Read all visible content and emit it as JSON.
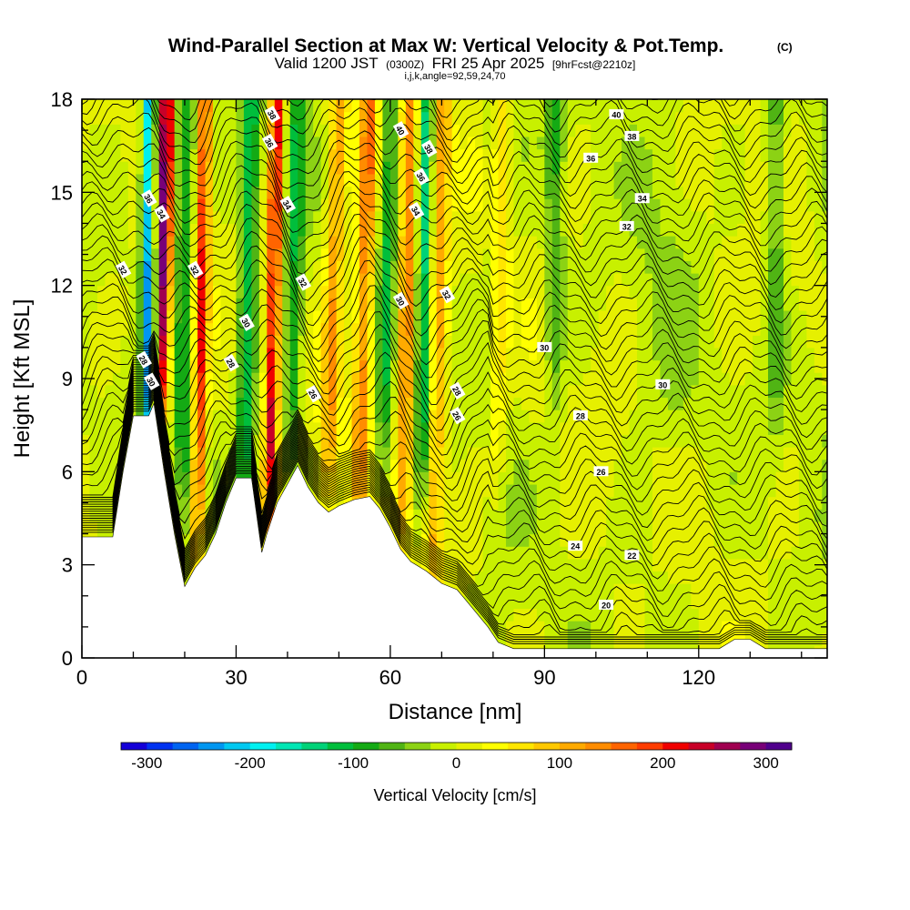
{
  "chart_data": {
    "type": "heatmap",
    "title": {
      "main": "Wind-Parallel Section at Max W: Vertical Velocity & Pot.Temp.",
      "mark": "(C)",
      "valid_prefix": "Valid 1200 JST",
      "valid_utc": "(0300Z)",
      "valid_date": "FRI 25 Apr 2025",
      "forecast": "[9hrFcst@2210z]",
      "indices": "i,j,k,angle=92,59,24,70"
    },
    "xlabel": "Distance [nm]",
    "ylabel": "Height [Kft MSL]",
    "xlim": [
      0,
      145
    ],
    "ylim": [
      0,
      18
    ],
    "x_ticks": [
      "0",
      "30",
      "60",
      "90",
      "120"
    ],
    "x_tick_values": [
      0,
      30,
      60,
      90,
      120
    ],
    "y_ticks": [
      "0",
      "3",
      "6",
      "9",
      "12",
      "15",
      "18"
    ],
    "y_tick_values": [
      0,
      3,
      6,
      9,
      12,
      15,
      18
    ],
    "colorbar": {
      "label": "Vertical Velocity [cm/s]",
      "min": -325,
      "max": 325,
      "step": 25,
      "tick_labels": [
        "-300",
        "-200",
        "-100",
        "0",
        "100",
        "200",
        "300"
      ],
      "tick_values": [
        -300,
        -200,
        -100,
        0,
        100,
        200,
        300
      ],
      "colors": [
        "#1400d8",
        "#0032f0",
        "#0064f0",
        "#0096f0",
        "#00c8f0",
        "#00f0f0",
        "#00e6b4",
        "#00d278",
        "#00be3c",
        "#14aa14",
        "#50b414",
        "#8cd214",
        "#c8f000",
        "#e6f000",
        "#ffff00",
        "#ffe600",
        "#ffc800",
        "#ffaa00",
        "#ff8c00",
        "#ff6400",
        "#ff3c00",
        "#f00000",
        "#c80028",
        "#a00050",
        "#780078",
        "#50008c"
      ]
    },
    "terrain_profile": [
      [
        0,
        3.9
      ],
      [
        6,
        3.9
      ],
      [
        8,
        6
      ],
      [
        10,
        7.8
      ],
      [
        13,
        7.8
      ],
      [
        14,
        8.2
      ],
      [
        16,
        6
      ],
      [
        18,
        4
      ],
      [
        20,
        2.3
      ],
      [
        22,
        2.9
      ],
      [
        24,
        3.3
      ],
      [
        26,
        4
      ],
      [
        28,
        5
      ],
      [
        30,
        5.8
      ],
      [
        33,
        5.8
      ],
      [
        35,
        3.4
      ],
      [
        36,
        4
      ],
      [
        38,
        5
      ],
      [
        40,
        5.6
      ],
      [
        42,
        6.2
      ],
      [
        44,
        5.5
      ],
      [
        46,
        5
      ],
      [
        48,
        4.7
      ],
      [
        50,
        4.9
      ],
      [
        53,
        5.1
      ],
      [
        56,
        5.2
      ],
      [
        58,
        4.8
      ],
      [
        60,
        4.2
      ],
      [
        62,
        3.5
      ],
      [
        64,
        3.1
      ],
      [
        67,
        2.8
      ],
      [
        70,
        2.4
      ],
      [
        73,
        2.2
      ],
      [
        76,
        1.6
      ],
      [
        79,
        1
      ],
      [
        81,
        0.5
      ],
      [
        84,
        0.3
      ],
      [
        88,
        0.3
      ],
      [
        94,
        0.3
      ],
      [
        100,
        0.3
      ],
      [
        106,
        0.3
      ],
      [
        112,
        0.3
      ],
      [
        118,
        0.3
      ],
      [
        124,
        0.3
      ],
      [
        127,
        0.6
      ],
      [
        130,
        0.6
      ],
      [
        133,
        0.3
      ],
      [
        138,
        0.3
      ],
      [
        141,
        0.3
      ],
      [
        145,
        0.3
      ]
    ],
    "updraft_plumes": [
      {
        "x": 15,
        "x_top": 16.5,
        "z_base": 8,
        "peak_w": 300
      },
      {
        "x": 22,
        "x_top": 24,
        "z_base": 3,
        "peak_w": 200
      },
      {
        "x": 36,
        "x_top": 38,
        "z_base": 4,
        "peak_w": 225
      },
      {
        "x": 47,
        "x_top": 50,
        "z_base": 5,
        "peak_w": 125
      },
      {
        "x": 53,
        "x_top": 56,
        "z_base": 5,
        "peak_w": 150
      },
      {
        "x": 62,
        "x_top": 64,
        "z_base": 4,
        "peak_w": 150
      },
      {
        "x": 68,
        "x_top": 70,
        "z_base": 2,
        "peak_w": 125
      },
      {
        "x": 80,
        "x_top": 82,
        "z_base": 6,
        "peak_w": 75
      }
    ],
    "downdraft_plumes": [
      {
        "x": 12.5,
        "x_top": 13,
        "z_base": 6,
        "peak_w": -225
      },
      {
        "x": 19.5,
        "x_top": 20,
        "z_base": 5,
        "peak_w": -100
      },
      {
        "x": 31,
        "x_top": 33,
        "z_base": 4,
        "peak_w": -125
      },
      {
        "x": 40,
        "x_top": 42,
        "z_base": 6,
        "peak_w": -100
      },
      {
        "x": 58,
        "x_top": 60,
        "z_base": 6,
        "peak_w": -100
      },
      {
        "x": 66,
        "x_top": 67,
        "z_base": 6,
        "peak_w": -150
      },
      {
        "x": 92,
        "x_top": 92,
        "z_base": 8,
        "peak_w": -75
      },
      {
        "x": 135,
        "x_top": 135,
        "z_base": 8,
        "peak_w": -75
      }
    ],
    "theta_contour_levels": [
      20,
      22,
      24,
      26,
      28,
      30,
      32,
      34,
      36,
      38,
      40
    ],
    "theta_contour_labels": [
      {
        "text": "20",
        "x": 102,
        "z": 1.7
      },
      {
        "text": "22",
        "x": 107,
        "z": 3.3
      },
      {
        "text": "24",
        "x": 96,
        "z": 3.6
      },
      {
        "text": "26",
        "x": 101,
        "z": 6
      },
      {
        "text": "26",
        "x": 73,
        "z": 7.8
      },
      {
        "text": "26",
        "x": 45,
        "z": 8.5
      },
      {
        "text": "28",
        "x": 97,
        "z": 7.8
      },
      {
        "text": "28",
        "x": 73,
        "z": 8.6
      },
      {
        "text": "28",
        "x": 29,
        "z": 9.5
      },
      {
        "text": "28",
        "x": 12,
        "z": 9.6
      },
      {
        "text": "30",
        "x": 13.5,
        "z": 8.9
      },
      {
        "text": "30",
        "x": 32,
        "z": 10.8
      },
      {
        "text": "30",
        "x": 90,
        "z": 10
      },
      {
        "text": "30",
        "x": 113,
        "z": 8.8
      },
      {
        "text": "30",
        "x": 62,
        "z": 11.5
      },
      {
        "text": "32",
        "x": 8,
        "z": 12.5
      },
      {
        "text": "32",
        "x": 22,
        "z": 12.5
      },
      {
        "text": "32",
        "x": 43,
        "z": 12.1
      },
      {
        "text": "32",
        "x": 71,
        "z": 11.7
      },
      {
        "text": "32",
        "x": 106,
        "z": 13.9
      },
      {
        "text": "34",
        "x": 15.5,
        "z": 14.3
      },
      {
        "text": "34",
        "x": 40,
        "z": 14.6
      },
      {
        "text": "34",
        "x": 65,
        "z": 14.4
      },
      {
        "text": "34",
        "x": 109,
        "z": 14.8
      },
      {
        "text": "36",
        "x": 13,
        "z": 14.8
      },
      {
        "text": "36",
        "x": 36.5,
        "z": 16.6
      },
      {
        "text": "36",
        "x": 66,
        "z": 15.5
      },
      {
        "text": "36",
        "x": 99,
        "z": 16.1
      },
      {
        "text": "38",
        "x": 37,
        "z": 17.5
      },
      {
        "text": "38",
        "x": 67.5,
        "z": 16.4
      },
      {
        "text": "38",
        "x": 107,
        "z": 16.8
      },
      {
        "text": "40",
        "x": 62,
        "z": 17
      },
      {
        "text": "40",
        "x": 104,
        "z": 17.5
      }
    ]
  }
}
